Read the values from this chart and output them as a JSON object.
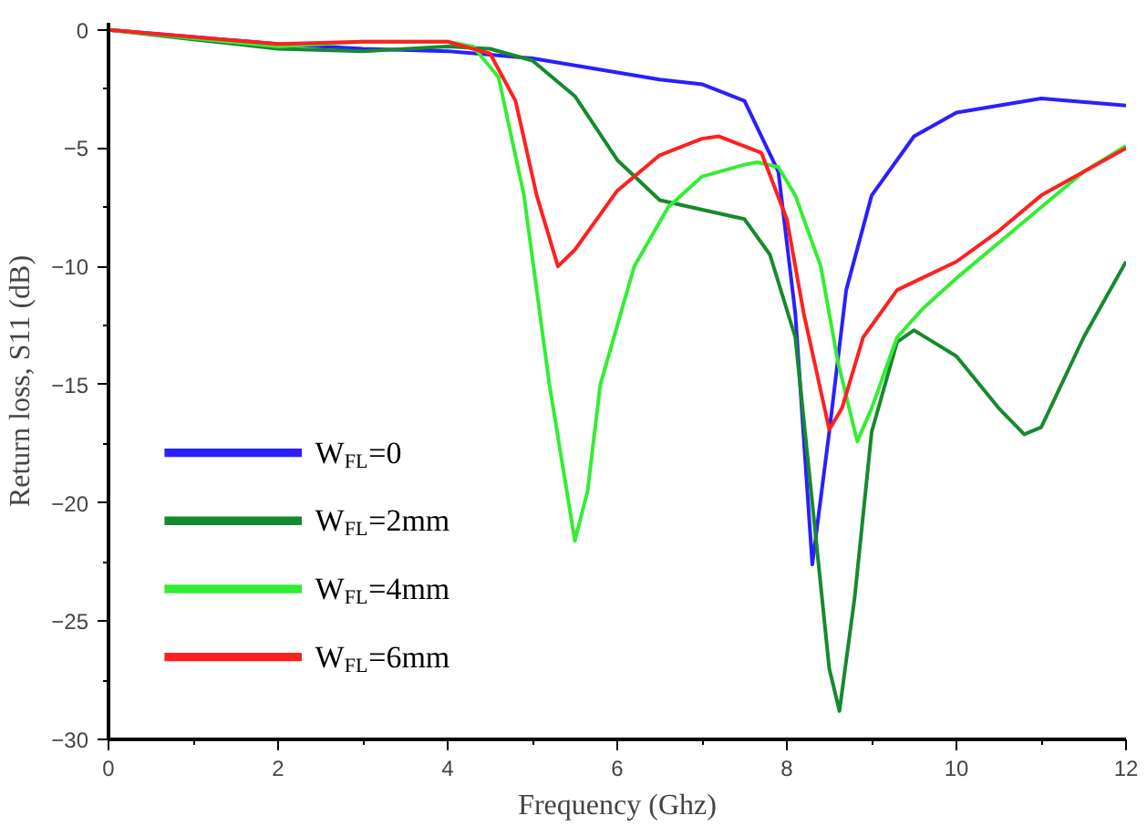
{
  "chart_data": {
    "type": "line",
    "xlabel": "Frequency (Ghz)",
    "ylabel": "Return loss, S11 (dB)",
    "xlim": [
      0,
      12
    ],
    "ylim": [
      -30,
      0.3
    ],
    "xticks": [
      0,
      2,
      4,
      6,
      8,
      10,
      12
    ],
    "yticks": [
      -30,
      -25,
      -20,
      -15,
      -10,
      -5,
      0
    ],
    "grid": false,
    "legend": "bottom left",
    "line_style": "solid",
    "marker": "none",
    "series": [
      {
        "name": "W$_{FL}$=0",
        "color": "#2a1fff",
        "x": [
          0,
          1,
          2,
          3,
          4,
          5,
          6,
          6.5,
          7,
          7.5,
          7.9,
          8.1,
          8.3,
          8.5,
          8.7,
          9,
          9.5,
          10,
          11,
          12
        ],
        "values": [
          0,
          -0.3,
          -0.6,
          -0.8,
          -0.9,
          -1.2,
          -1.8,
          -2.1,
          -2.3,
          -3.0,
          -6,
          -12,
          -22.6,
          -17,
          -11,
          -7,
          -4.5,
          -3.5,
          -2.9,
          -3.2
        ]
      },
      {
        "name": "W$_{FL}$=2mm",
        "color": "#168a2e",
        "x": [
          0,
          1,
          2,
          3,
          4,
          4.5,
          5,
          5.5,
          6,
          6.5,
          7,
          7.5,
          7.8,
          8.1,
          8.3,
          8.5,
          8.62,
          8.8,
          9,
          9.3,
          9.5,
          10,
          10.5,
          10.8,
          11,
          11.5,
          12
        ],
        "values": [
          0,
          -0.4,
          -0.8,
          -0.9,
          -0.7,
          -0.8,
          -1.3,
          -2.8,
          -5.5,
          -7.2,
          -7.6,
          -8,
          -9.5,
          -13,
          -20,
          -27,
          -28.8,
          -24,
          -17,
          -13.2,
          -12.7,
          -13.8,
          -16,
          -17.1,
          -16.8,
          -13,
          -9.8
        ]
      },
      {
        "name": "W$_{FL}$=4mm",
        "color": "#33ee33",
        "x": [
          0,
          2,
          3,
          4,
          4.3,
          4.6,
          4.9,
          5.2,
          5.5,
          5.65,
          5.8,
          6.2,
          6.6,
          7,
          7.5,
          7.65,
          7.9,
          8.1,
          8.4,
          8.6,
          8.83,
          9,
          9.3,
          9.6,
          10,
          10.5,
          11,
          11.5,
          12
        ],
        "values": [
          0,
          -0.7,
          -0.5,
          -0.5,
          -0.7,
          -2,
          -7,
          -15,
          -21.6,
          -19.5,
          -15,
          -10,
          -7.5,
          -6.2,
          -5.7,
          -5.6,
          -5.8,
          -7,
          -10,
          -14,
          -17.4,
          -16,
          -13,
          -11.8,
          -10.5,
          -9,
          -7.5,
          -6,
          -4.9
        ]
      },
      {
        "name": "W$_{FL}$=6mm",
        "color": "#ff2020",
        "x": [
          0,
          2,
          3,
          4,
          4.5,
          4.8,
          5.05,
          5.3,
          5.5,
          6,
          6.5,
          7,
          7.2,
          7.7,
          8.0,
          8.2,
          8.5,
          8.65,
          8.9,
          9.3,
          10,
          10.5,
          11,
          12
        ],
        "values": [
          0,
          -0.6,
          -0.5,
          -0.5,
          -1,
          -3,
          -7,
          -10,
          -9.3,
          -6.8,
          -5.3,
          -4.6,
          -4.5,
          -5.2,
          -8,
          -12,
          -16.9,
          -16,
          -13,
          -11,
          -9.8,
          -8.5,
          -7,
          -5
        ]
      }
    ]
  }
}
